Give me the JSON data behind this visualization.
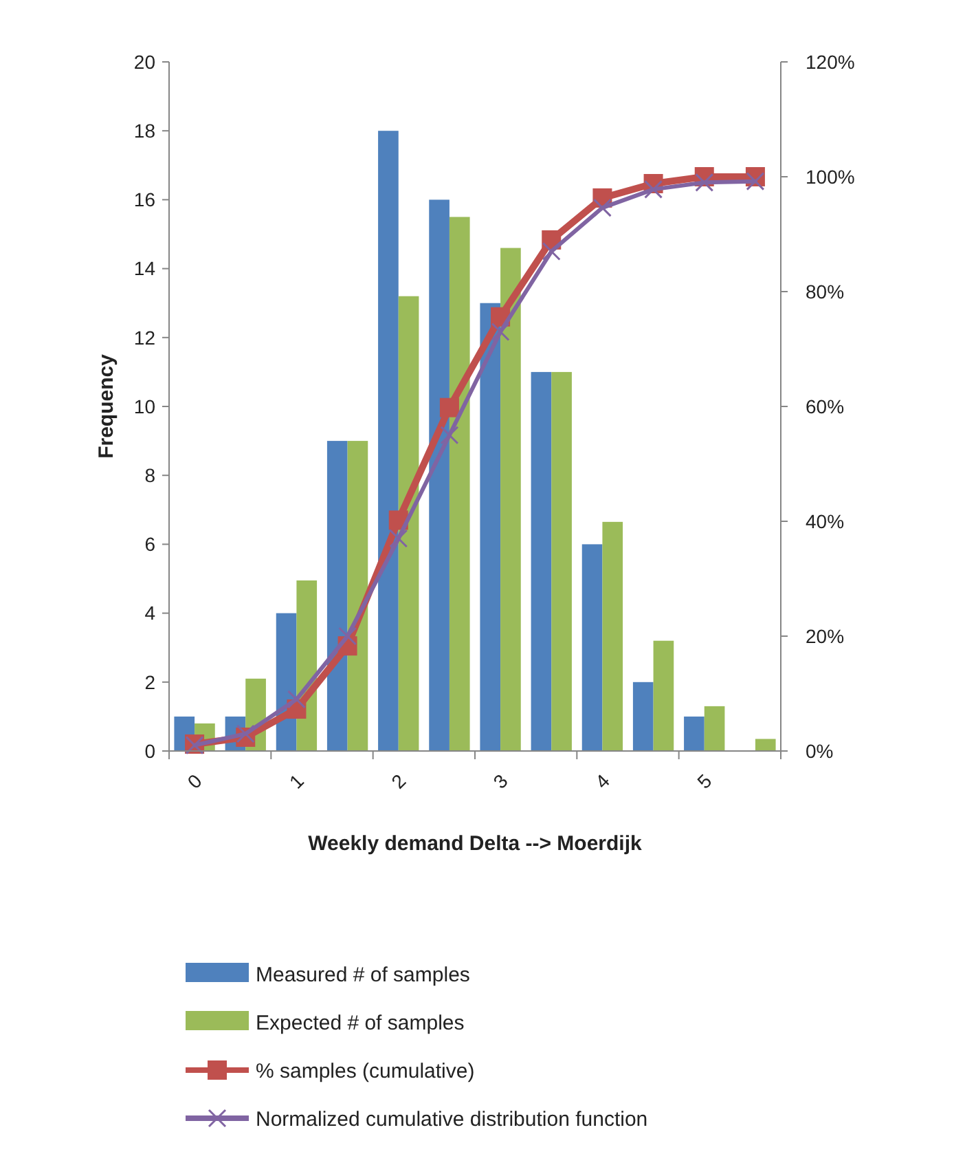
{
  "chart_data": {
    "type": "bar",
    "xlabel": "Weekly demand Delta --> Moerdijk",
    "ylabel": "Frequency",
    "categories": [
      "0",
      null,
      "1",
      null,
      "2",
      null,
      "3",
      null,
      "4",
      null,
      "5",
      null
    ],
    "ylim": [
      0,
      20
    ],
    "yticks": [
      0,
      2,
      4,
      6,
      8,
      10,
      12,
      14,
      16,
      18,
      20
    ],
    "y2lim": [
      0,
      120
    ],
    "y2ticks": [
      {
        "value": 0,
        "label": "0%"
      },
      {
        "value": 20,
        "label": "20%"
      },
      {
        "value": 40,
        "label": "40%"
      },
      {
        "value": 60,
        "label": "60%"
      },
      {
        "value": 80,
        "label": "80%"
      },
      {
        "value": 100,
        "label": "100%"
      },
      {
        "value": 120,
        "label": "120%"
      }
    ],
    "series": [
      {
        "name": "Measured # of samples",
        "color": "#4f81bd",
        "values": [
          1,
          1,
          4,
          9,
          18,
          16,
          13,
          11,
          6,
          2,
          1,
          0
        ]
      },
      {
        "name": "Expected # of samples",
        "color": "#9bbb59",
        "values": [
          0.8,
          2.1,
          4.95,
          9,
          13.2,
          15.5,
          14.6,
          11,
          6.65,
          3.2,
          1.3,
          0.35
        ]
      },
      {
        "name": "% samples (cumulative)",
        "type": "line",
        "axis": "y2",
        "marker": "square",
        "color": "#c0504d",
        "values": [
          1.2,
          2.4,
          7.3,
          18.3,
          40.2,
          59.8,
          75.6,
          89,
          96.3,
          98.8,
          100,
          100
        ]
      },
      {
        "name": "Normalized cumulative distribution function",
        "type": "line",
        "axis": "y2",
        "marker": "cross",
        "color": "#8064a2",
        "values": [
          1,
          3,
          9,
          20,
          37,
          55,
          73,
          87,
          94.6,
          97.8,
          99,
          99.2
        ]
      }
    ],
    "grid": false,
    "legend": "bottom"
  }
}
